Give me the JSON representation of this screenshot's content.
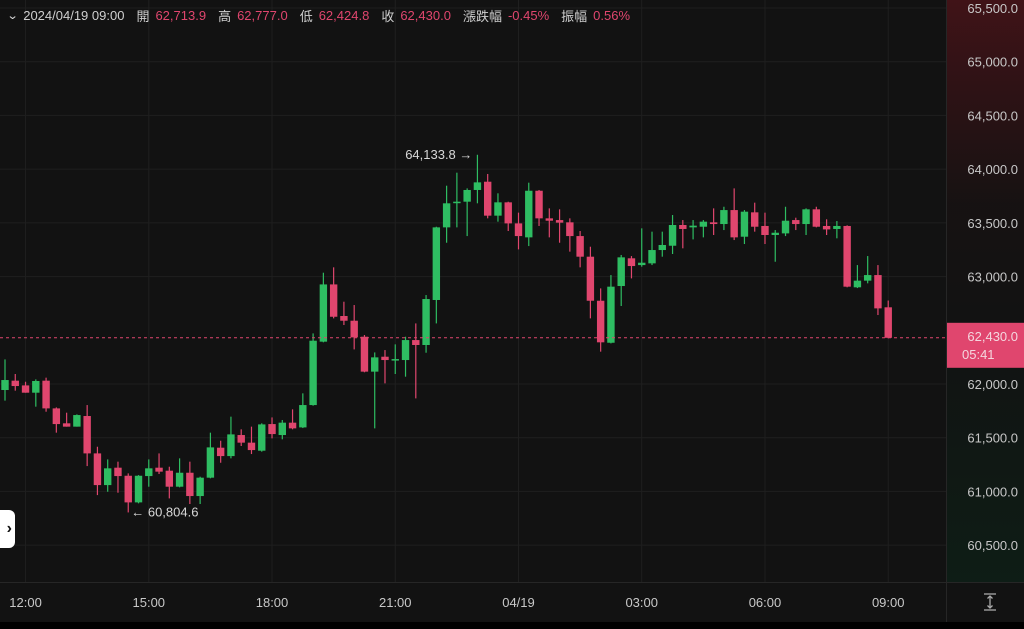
{
  "header": {
    "datetime": "2024/04/19 09:00",
    "open_label": "開",
    "open": "62,713.9",
    "high_label": "高",
    "high": "62,777.0",
    "low_label": "低",
    "low": "62,424.8",
    "close_label": "收",
    "close": "62,430.0",
    "change_label": "漲跌幅",
    "change": "-0.45%",
    "amplitude_label": "振幅",
    "amplitude": "0.56%"
  },
  "current_price": {
    "value": "62,430.0",
    "countdown": "05:41"
  },
  "annotations": {
    "max_label": "64,133.8 →",
    "min_label": "← 60,804.6"
  },
  "colors": {
    "up": "#2ebd62",
    "down": "#e0466e",
    "background": "#121212",
    "grid": "#1f1f1f",
    "text": "#cfcfcf"
  },
  "icons": {
    "collapse": "chevron-down-icon",
    "side_toggle": "chevron-right-icon",
    "fit": "vertical-fit-icon"
  },
  "chart_data": {
    "type": "candlestick",
    "ylim": [
      60100,
      65600
    ],
    "y_ticks": [
      "65,500.0",
      "65,000.0",
      "64,500.0",
      "64,000.0",
      "63,500.0",
      "63,000.0",
      "62,000.0",
      "61,500.0",
      "61,000.0",
      "60,500.0"
    ],
    "y_tick_values": [
      65500,
      65000,
      64500,
      64000,
      63500,
      63000,
      62000,
      61500,
      61000,
      60500
    ],
    "x_ticks": [
      {
        "time": "12:00",
        "label": "12:00"
      },
      {
        "time": "15:00",
        "label": "15:00"
      },
      {
        "time": "18:00",
        "label": "18:00"
      },
      {
        "time": "21:00",
        "label": "21:00"
      },
      {
        "time": "00:00",
        "label": "04/19"
      },
      {
        "time": "03:00",
        "label": "03:00"
      },
      {
        "time": "06:00",
        "label": "06:00"
      },
      {
        "time": "09:00",
        "label": "09:00"
      }
    ],
    "grid": true,
    "last_price": 62430.0,
    "max": 64133.8,
    "min": 60804.6,
    "columns": [
      "time",
      "open",
      "high",
      "low",
      "close"
    ],
    "candles": [
      [
        "11:30",
        61944,
        62229,
        61845,
        62037
      ],
      [
        "11:45",
        62031,
        62093,
        61938,
        61981
      ],
      [
        "12:00",
        61987,
        62021,
        61919,
        61919
      ],
      [
        "12:15",
        61919,
        62043,
        61789,
        62028
      ],
      [
        "12:30",
        62031,
        62059,
        61742,
        61773
      ],
      [
        "12:45",
        61773,
        61782,
        61547,
        61627
      ],
      [
        "13:00",
        61634,
        61733,
        61603,
        61603
      ],
      [
        "13:15",
        61603,
        61717,
        61603,
        61711
      ],
      [
        "13:30",
        61702,
        61804,
        61236,
        61354
      ],
      [
        "13:45",
        61354,
        61416,
        60966,
        61059
      ],
      [
        "14:00",
        61059,
        61298,
        60997,
        61215
      ],
      [
        "14:15",
        61221,
        61277,
        60988,
        61143
      ],
      [
        "14:30",
        61146,
        61168,
        60804.6,
        60898
      ],
      [
        "14:45",
        60898,
        61152,
        60889,
        61146
      ],
      [
        "15:00",
        61143,
        61298,
        61044,
        61215
      ],
      [
        "15:15",
        61221,
        61354,
        61162,
        61184
      ],
      [
        "15:30",
        61193,
        61230,
        60935,
        61044
      ],
      [
        "15:45",
        61044,
        61308,
        61038,
        61174
      ],
      [
        "16:00",
        61174,
        61277,
        60883,
        60957
      ],
      [
        "16:15",
        60957,
        61137,
        60883,
        61128
      ],
      [
        "16:30",
        61128,
        61547,
        61122,
        61410
      ],
      [
        "16:45",
        61407,
        61472,
        61267,
        61329
      ],
      [
        "17:00",
        61329,
        61696,
        61308,
        61531
      ],
      [
        "17:15",
        61525,
        61578,
        61423,
        61454
      ],
      [
        "17:30",
        61454,
        61603,
        61348,
        61385
      ],
      [
        "17:45",
        61379,
        61634,
        61370,
        61624
      ],
      [
        "18:00",
        61627,
        61689,
        61494,
        61534
      ],
      [
        "18:15",
        61525,
        61665,
        61485,
        61640
      ],
      [
        "18:30",
        61640,
        61764,
        61578,
        61587
      ],
      [
        "18:45",
        61596,
        61913,
        61590,
        61804
      ],
      [
        "19:00",
        61804,
        62471,
        61798,
        62403
      ],
      [
        "19:15",
        62394,
        63036,
        62388,
        62927
      ],
      [
        "19:30",
        62927,
        63086,
        62611,
        62626
      ],
      [
        "19:45",
        62633,
        62766,
        62549,
        62589
      ],
      [
        "20:00",
        62589,
        62735,
        62322,
        62434
      ],
      [
        "20:15",
        62440,
        62456,
        62109,
        62115
      ],
      [
        "20:30",
        62115,
        62294,
        61587,
        62248
      ],
      [
        "20:45",
        62254,
        62316,
        62006,
        62223
      ],
      [
        "21:00",
        62223,
        62369,
        62093,
        62232
      ],
      [
        "21:15",
        62223,
        62440,
        62068,
        62409
      ],
      [
        "21:30",
        62409,
        62564,
        61866,
        62363
      ],
      [
        "21:45",
        62363,
        62828,
        62291,
        62791
      ],
      [
        "22:00",
        62782,
        63464,
        62564,
        63458
      ],
      [
        "22:15",
        63458,
        63846,
        63315,
        63682
      ],
      [
        "22:30",
        63688,
        63967,
        63458,
        63697
      ],
      [
        "22:45",
        63697,
        63821,
        63377,
        63806
      ],
      [
        "23:00",
        63806,
        64133.8,
        63682,
        63877
      ],
      [
        "23:15",
        63883,
        63955,
        63542,
        63567
      ],
      [
        "23:30",
        63567,
        63775,
        63511,
        63691
      ],
      [
        "23:45",
        63691,
        63697,
        63424,
        63495
      ],
      [
        "00:00",
        63495,
        63595,
        63253,
        63377
      ],
      [
        "00:15",
        63365,
        63874,
        63284,
        63799
      ],
      [
        "00:30",
        63799,
        63806,
        63471,
        63542
      ],
      [
        "00:45",
        63542,
        63635,
        63365,
        63520
      ],
      [
        "01:00",
        63526,
        63626,
        63315,
        63502
      ],
      [
        "01:15",
        63505,
        63542,
        63232,
        63377
      ],
      [
        "01:30",
        63377,
        63424,
        63086,
        63185
      ],
      [
        "01:45",
        63185,
        63278,
        62611,
        62775
      ],
      [
        "02:00",
        62775,
        62890,
        62301,
        62388
      ],
      [
        "02:15",
        62384,
        63014,
        62378,
        62906
      ],
      [
        "02:30",
        62912,
        63201,
        62726,
        63179
      ],
      [
        "02:45",
        63170,
        63191,
        62983,
        63098
      ],
      [
        "03:00",
        63107,
        63449,
        63092,
        63129
      ],
      [
        "03:15",
        63123,
        63418,
        63107,
        63247
      ],
      [
        "03:30",
        63247,
        63418,
        63185,
        63294
      ],
      [
        "03:45",
        63287,
        63573,
        63210,
        63480
      ],
      [
        "04:00",
        63480,
        63526,
        63263,
        63443
      ],
      [
        "04:15",
        63458,
        63526,
        63346,
        63474
      ],
      [
        "04:30",
        63464,
        63526,
        63365,
        63511
      ],
      [
        "04:45",
        63505,
        63635,
        63387,
        63489
      ],
      [
        "05:00",
        63489,
        63650,
        63433,
        63619
      ],
      [
        "05:15",
        63619,
        63821,
        63340,
        63365
      ],
      [
        "05:30",
        63371,
        63619,
        63303,
        63604
      ],
      [
        "05:45",
        63598,
        63688,
        63418,
        63464
      ],
      [
        "06:00",
        63471,
        63595,
        63303,
        63387
      ],
      [
        "06:15",
        63387,
        63433,
        63138,
        63408
      ],
      [
        "06:30",
        63402,
        63650,
        63377,
        63520
      ],
      [
        "06:45",
        63526,
        63548,
        63433,
        63489
      ],
      [
        "07:00",
        63489,
        63635,
        63387,
        63626
      ],
      [
        "07:15",
        63626,
        63650,
        63458,
        63464
      ],
      [
        "07:30",
        63471,
        63533,
        63387,
        63439
      ],
      [
        "07:45",
        63443,
        63517,
        63356,
        63471
      ],
      [
        "08:00",
        63471,
        63477,
        62900,
        62906
      ],
      [
        "08:15",
        62900,
        63107,
        62893,
        62962
      ],
      [
        "08:30",
        62962,
        63191,
        62937,
        63014
      ],
      [
        "08:45",
        63014,
        63107,
        62642,
        62704
      ],
      [
        "09:00",
        62713.9,
        62777.0,
        62424.8,
        62430.0
      ]
    ]
  }
}
